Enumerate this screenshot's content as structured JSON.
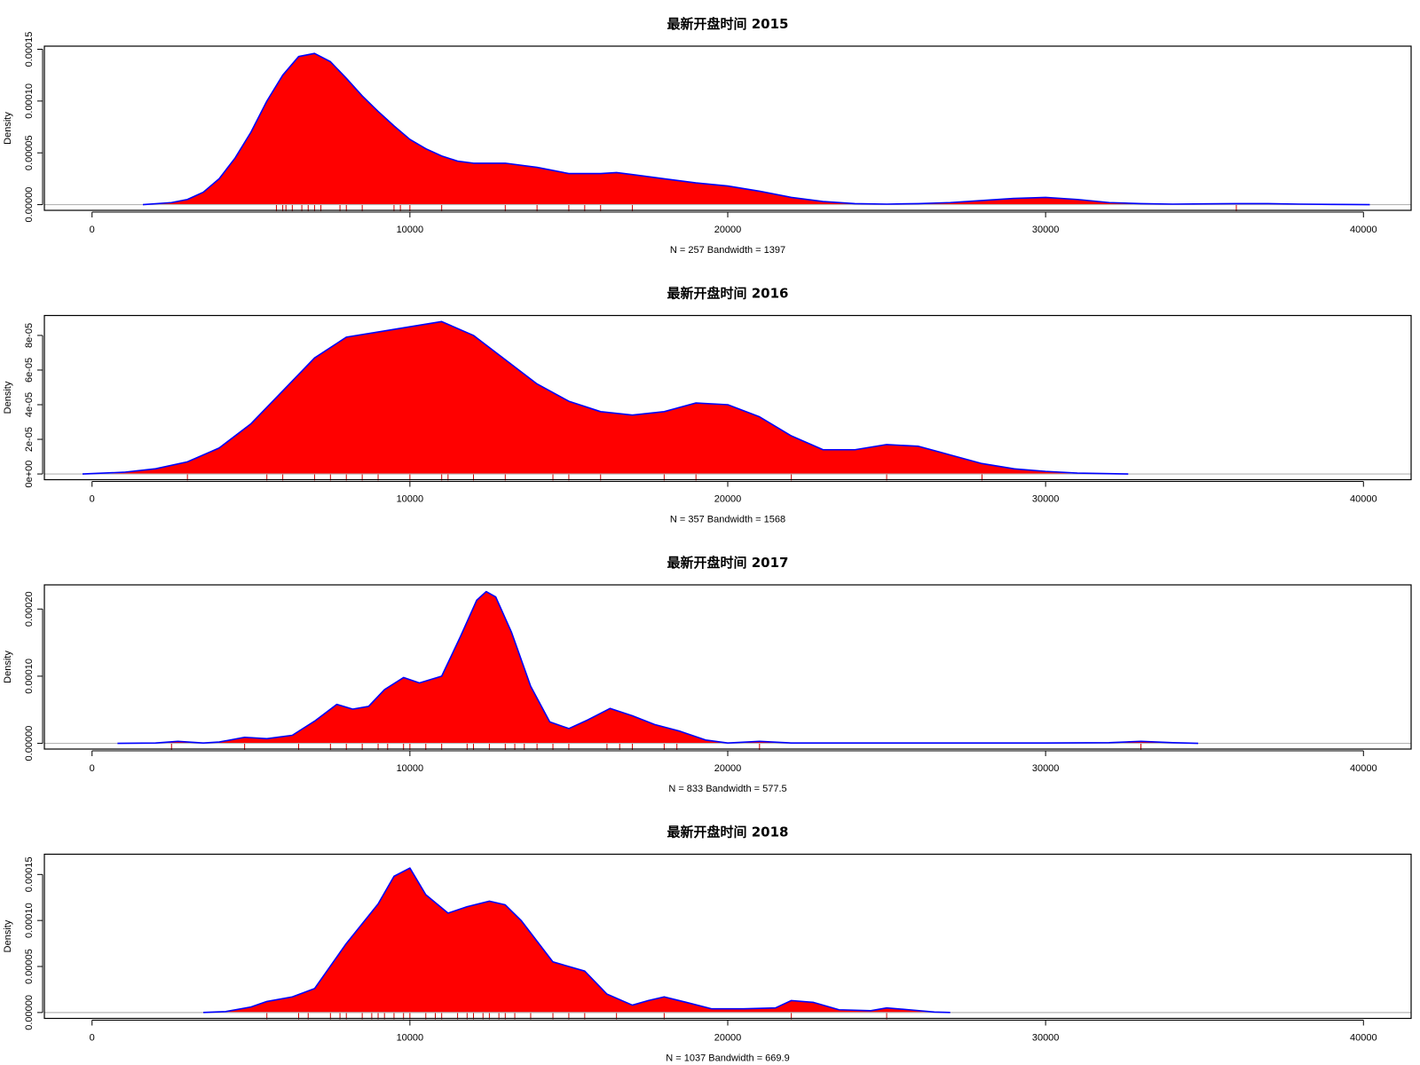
{
  "chart_data": [
    {
      "type": "area",
      "title": "最新开盘时间 2015",
      "xlabel": "N = 257   Bandwidth = 1397",
      "ylabel": "Density",
      "xlim": [
        -1500,
        41500
      ],
      "ylim": [
        -5.5e-06,
        0.000153
      ],
      "x_ticks": [
        0,
        10000,
        20000,
        30000,
        40000
      ],
      "x_tick_labels": [
        "0",
        "10000",
        "20000",
        "30000",
        "40000"
      ],
      "y_ticks": [
        0,
        5e-05,
        0.0001,
        0.00015
      ],
      "y_tick_labels": [
        "0.00000",
        "0.00005",
        "0.00010",
        "0.00015"
      ],
      "fill_color": "#ff0000",
      "line_color": "#0000ff",
      "rug_color": "#cc0000",
      "series": [
        {
          "x": [
            1600,
            2500,
            3000,
            3500,
            4000,
            4500,
            5000,
            5500,
            6000,
            6500,
            7000,
            7500,
            8000,
            8500,
            9000,
            9500,
            10000,
            10500,
            11000,
            11500,
            12000,
            13000,
            14000,
            15000,
            16000,
            16500,
            17000,
            18000,
            19000,
            20000,
            21000,
            22000,
            23000,
            24000,
            25000,
            26000,
            27000,
            28000,
            29000,
            30000,
            31000,
            32000,
            33000,
            34000,
            35000,
            36000,
            37000,
            38000,
            39000,
            40200
          ],
          "y": [
            0,
            2e-06,
            5e-06,
            1.2e-05,
            2.5e-05,
            4.5e-05,
            7e-05,
            0.0001,
            0.000125,
            0.000143,
            0.000146,
            0.000138,
            0.000122,
            0.000105,
            9e-05,
            7.6e-05,
            6.3e-05,
            5.4e-05,
            4.7e-05,
            4.2e-05,
            4e-05,
            4e-05,
            3.6e-05,
            3e-05,
            3e-05,
            3.1e-05,
            2.9e-05,
            2.5e-05,
            2.1e-05,
            1.8e-05,
            1.3e-05,
            7e-06,
            3e-06,
            1e-06,
            5e-07,
            1e-06,
            2e-06,
            4e-06,
            6e-06,
            7e-06,
            5e-06,
            2e-06,
            1e-06,
            5e-07,
            8e-07,
            1e-06,
            1e-06,
            5e-07,
            2e-07,
            0
          ]
        }
      ],
      "rug": [
        5800,
        6000,
        6100,
        6300,
        6600,
        6800,
        7000,
        7200,
        7800,
        8000,
        8500,
        9500,
        9700,
        10000,
        11000,
        13000,
        14000,
        15000,
        15500,
        16000,
        17000,
        36000
      ]
    },
    {
      "type": "area",
      "title": "最新开盘时间 2016",
      "xlabel": "N = 357   Bandwidth = 1568",
      "ylabel": "Density",
      "xlim": [
        -1500,
        41500
      ],
      "ylim": [
        -3.3e-06,
        9.15e-05
      ],
      "x_ticks": [
        0,
        10000,
        20000,
        30000,
        40000
      ],
      "x_tick_labels": [
        "0",
        "10000",
        "20000",
        "30000",
        "40000"
      ],
      "y_ticks": [
        0,
        2e-05,
        4e-05,
        6e-05,
        8e-05
      ],
      "y_tick_labels": [
        "0e+00",
        "2e-05",
        "4e-05",
        "6e-05",
        "8e-05"
      ],
      "fill_color": "#ff0000",
      "line_color": "#0000ff",
      "rug_color": "#cc0000",
      "series": [
        {
          "x": [
            -300,
            1000,
            2000,
            3000,
            4000,
            5000,
            6000,
            7000,
            8000,
            9000,
            10000,
            11000,
            12000,
            13000,
            14000,
            15000,
            16000,
            17000,
            18000,
            19000,
            20000,
            21000,
            22000,
            23000,
            24000,
            25000,
            26000,
            27000,
            28000,
            29000,
            30000,
            31000,
            32600
          ],
          "y": [
            0,
            1e-06,
            3e-06,
            7e-06,
            1.5e-05,
            2.9e-05,
            4.8e-05,
            6.7e-05,
            7.9e-05,
            8.2e-05,
            8.5e-05,
            8.8e-05,
            8e-05,
            6.6e-05,
            5.2e-05,
            4.2e-05,
            3.6e-05,
            3.4e-05,
            3.6e-05,
            4.1e-05,
            4e-05,
            3.3e-05,
            2.2e-05,
            1.4e-05,
            1.4e-05,
            1.7e-05,
            1.6e-05,
            1.1e-05,
            6e-06,
            3e-06,
            1.5e-06,
            5e-07,
            0
          ]
        }
      ],
      "rug": [
        3000,
        5500,
        6000,
        7000,
        7500,
        8000,
        8500,
        9000,
        10000,
        11000,
        11200,
        12000,
        13000,
        14500,
        15000,
        16000,
        18000,
        19000,
        22000,
        25000,
        28000
      ]
    },
    {
      "type": "area",
      "title": "最新开盘时间 2017",
      "xlabel": "N = 833   Bandwidth = 577.5",
      "ylabel": "Density",
      "xlim": [
        -1500,
        41500
      ],
      "ylim": [
        -8.5e-06,
        0.000236
      ],
      "x_ticks": [
        0,
        10000,
        20000,
        30000,
        40000
      ],
      "x_tick_labels": [
        "0",
        "10000",
        "20000",
        "30000",
        "40000"
      ],
      "y_ticks": [
        0,
        0.0001,
        0.0002
      ],
      "y_tick_labels": [
        "0.00000",
        "0.00010",
        "0.00020"
      ],
      "fill_color": "#ff0000",
      "line_color": "#0000ff",
      "rug_color": "#cc0000",
      "series": [
        {
          "x": [
            800,
            2000,
            2700,
            3500,
            4000,
            4800,
            5500,
            6300,
            7000,
            7700,
            8200,
            8700,
            9200,
            9800,
            10300,
            11000,
            11600,
            12100,
            12400,
            12700,
            13200,
            13800,
            14400,
            15000,
            15600,
            16300,
            17000,
            17700,
            18500,
            19300,
            20000,
            21000,
            22000,
            25000,
            30000,
            32000,
            33000,
            34000,
            34800
          ],
          "y": [
            0,
            5e-07,
            3e-06,
            5e-07,
            2e-06,
            9e-06,
            7e-06,
            1.2e-05,
            3.3e-05,
            5.8e-05,
            5.1e-05,
            5.5e-05,
            8e-05,
            9.8e-05,
            9e-05,
            0.0001,
            0.00016,
            0.000213,
            0.000226,
            0.000218,
            0.000165,
            8.5e-05,
            3.2e-05,
            2.2e-05,
            3.5e-05,
            5.2e-05,
            4.1e-05,
            2.8e-05,
            1.8e-05,
            5e-06,
            5e-07,
            3e-06,
            5e-07,
            5e-07,
            5e-07,
            1e-06,
            3e-06,
            1e-06,
            0
          ]
        }
      ],
      "rug": [
        2500,
        4800,
        6500,
        7500,
        8000,
        8500,
        9000,
        9300,
        9800,
        10000,
        10500,
        11000,
        11800,
        12000,
        12500,
        13000,
        13300,
        13600,
        14000,
        14500,
        15000,
        16200,
        16600,
        17000,
        18000,
        18400,
        21000,
        33000
      ]
    },
    {
      "type": "area",
      "title": "最新开盘时间 2018",
      "xlabel": "N = 1037   Bandwidth = 669.9",
      "ylabel": "Density",
      "xlim": [
        -1500,
        41500
      ],
      "ylim": [
        -6.4e-06,
        0.000172
      ],
      "x_ticks": [
        0,
        10000,
        20000,
        30000,
        40000
      ],
      "x_tick_labels": [
        "0",
        "10000",
        "20000",
        "30000",
        "40000"
      ],
      "y_ticks": [
        0,
        5e-05,
        0.0001,
        0.00015
      ],
      "y_tick_labels": [
        "0.00000",
        "0.00005",
        "0.00010",
        "0.00015"
      ],
      "fill_color": "#ff0000",
      "line_color": "#0000ff",
      "rug_color": "#cc0000",
      "series": [
        {
          "x": [
            3500,
            4200,
            5000,
            5500,
            6300,
            7000,
            8000,
            9000,
            9500,
            10000,
            10500,
            11200,
            11800,
            12500,
            13000,
            13500,
            14500,
            15500,
            16200,
            17000,
            17500,
            18000,
            18700,
            19500,
            20500,
            21500,
            22000,
            22700,
            23500,
            24500,
            25000,
            25700,
            26500,
            27000
          ],
          "y": [
            0,
            1e-06,
            6e-06,
            1.2e-05,
            1.7e-05,
            2.6e-05,
            7.5e-05,
            0.000118,
            0.000148,
            0.000157,
            0.000128,
            0.000108,
            0.000115,
            0.000121,
            0.000117,
            0.0001,
            5.5e-05,
            4.5e-05,
            2e-05,
            8e-06,
            1.3e-05,
            1.7e-05,
            1.1e-05,
            4e-06,
            4e-06,
            5e-06,
            1.3e-05,
            1.1e-05,
            3e-06,
            2e-06,
            5e-06,
            3e-06,
            5e-07,
            0
          ]
        }
      ],
      "rug": [
        5500,
        6500,
        6800,
        7500,
        7800,
        8000,
        8500,
        8800,
        9000,
        9200,
        9500,
        9800,
        10000,
        10500,
        10800,
        11000,
        11500,
        11800,
        12000,
        12300,
        12500,
        12800,
        13000,
        13300,
        13800,
        14500,
        15000,
        15500,
        16500,
        18000,
        22000,
        25000
      ]
    }
  ]
}
